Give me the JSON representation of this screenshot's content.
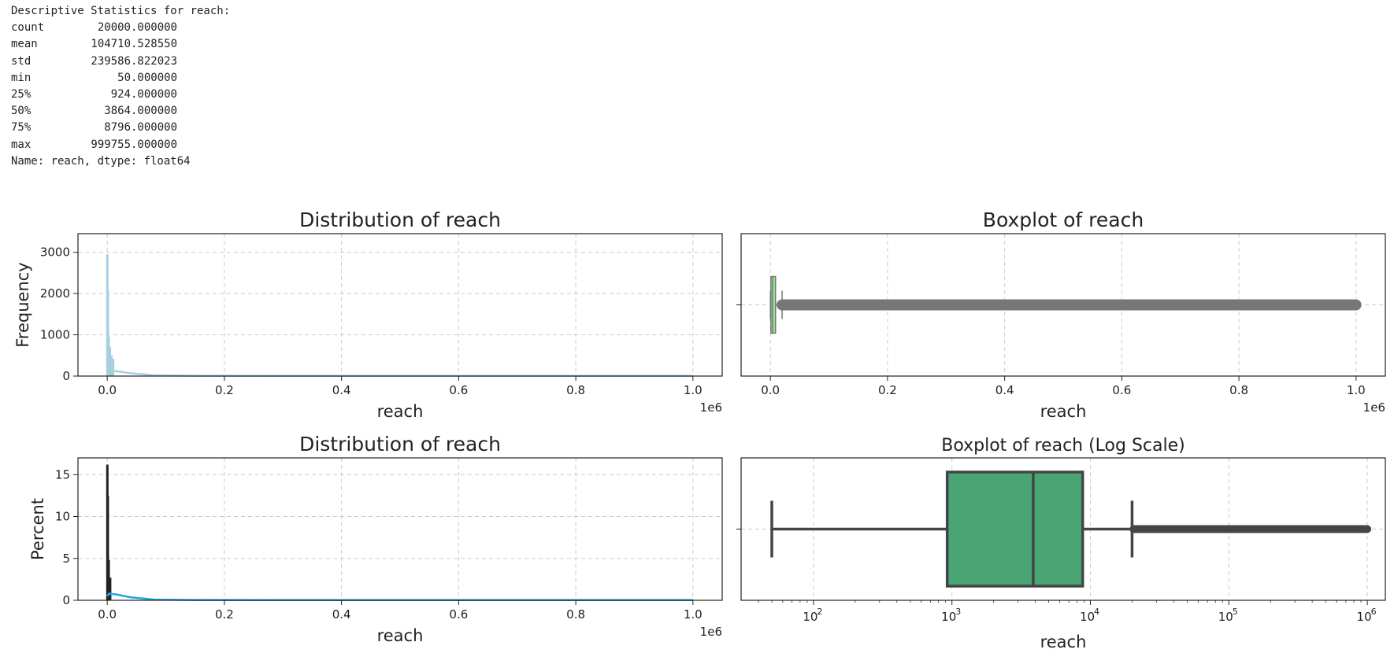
{
  "stats_panel": {
    "header": "Descriptive Statistics for reach:",
    "rows": [
      {
        "label": "count",
        "value": "20000.000000"
      },
      {
        "label": "mean",
        "value": "104710.528550"
      },
      {
        "label": "std",
        "value": "239586.822023"
      },
      {
        "label": "min",
        "value": "50.000000"
      },
      {
        "label": "25%",
        "value": "924.000000"
      },
      {
        "label": "50%",
        "value": "3864.000000"
      },
      {
        "label": "75%",
        "value": "8796.000000"
      },
      {
        "label": "max",
        "value": "999755.000000"
      }
    ],
    "footer": "Name: reach, dtype: float64"
  },
  "chart_data": [
    {
      "type": "histogram",
      "title": "Distribution of reach",
      "xlabel": "reach",
      "ylabel": "Frequency",
      "x_offset_text": "1e6",
      "xlim": [
        -50000,
        1050000
      ],
      "ylim": [
        0,
        3450
      ],
      "xticks": [
        0,
        200000,
        400000,
        600000,
        800000,
        1000000
      ],
      "xtick_labels": [
        "0.0",
        "0.2",
        "0.4",
        "0.6",
        "0.8",
        "1.0"
      ],
      "yticks": [
        0,
        1000,
        2000,
        3000
      ],
      "ytick_labels": [
        "0",
        "1000",
        "2000",
        "3000"
      ],
      "grid": true,
      "color": "#a8cfe0",
      "kde_color": "#a8cfe0",
      "bins": [
        {
          "x": 200,
          "value": 2950
        },
        {
          "x": 1000,
          "value": 2100
        },
        {
          "x": 2500,
          "value": 950
        },
        {
          "x": 4500,
          "value": 700
        },
        {
          "x": 7000,
          "value": 500
        },
        {
          "x": 10000,
          "value": 420
        }
      ],
      "kde": [
        [
          0,
          60
        ],
        [
          3000,
          140
        ],
        [
          15000,
          120
        ],
        [
          40000,
          70
        ],
        [
          80000,
          20
        ],
        [
          150000,
          8
        ],
        [
          300000,
          5
        ],
        [
          600000,
          5
        ],
        [
          1000000,
          5
        ]
      ]
    },
    {
      "type": "boxplot",
      "title": "Boxplot of reach",
      "xlabel": "reach",
      "x_offset_text": "1e6",
      "xlim": [
        -50000,
        1050000
      ],
      "xticks": [
        0,
        200000,
        400000,
        600000,
        800000,
        1000000
      ],
      "xtick_labels": [
        "0.0",
        "0.2",
        "0.4",
        "0.6",
        "0.8",
        "1.0"
      ],
      "grid": true,
      "box_color": "#90ee90",
      "line_color": "#777777",
      "min": 50,
      "q1": 924,
      "median": 3864,
      "q3": 8796,
      "whisker_high": 20000,
      "outliers_from": 20000,
      "outliers_to": 999755
    },
    {
      "type": "histogram",
      "title": "Distribution of reach",
      "xlabel": "reach",
      "ylabel": "Percent",
      "x_offset_text": "1e6",
      "xlim": [
        -50000,
        1050000
      ],
      "ylim": [
        0,
        17
      ],
      "xticks": [
        0,
        200000,
        400000,
        600000,
        800000,
        1000000
      ],
      "xtick_labels": [
        "0.0",
        "0.2",
        "0.4",
        "0.6",
        "0.8",
        "1.0"
      ],
      "yticks": [
        0,
        5,
        10,
        15
      ],
      "ytick_labels": [
        "0",
        "5",
        "10",
        "15"
      ],
      "grid": true,
      "color": "#222222",
      "kde_color": "#1ea7e1",
      "bins": [
        {
          "x": 200,
          "value": 16.2
        },
        {
          "x": 1000,
          "value": 12.5
        },
        {
          "x": 2500,
          "value": 4.8
        },
        {
          "x": 5000,
          "value": 2.7
        }
      ],
      "kde": [
        [
          0,
          0.5
        ],
        [
          3000,
          0.8
        ],
        [
          15000,
          0.7
        ],
        [
          40000,
          0.35
        ],
        [
          80000,
          0.08
        ],
        [
          150000,
          0.03
        ],
        [
          300000,
          0.02
        ],
        [
          600000,
          0.02
        ],
        [
          1000000,
          0.02
        ]
      ]
    },
    {
      "type": "boxplot",
      "title": "Boxplot of reach (Log Scale)",
      "xlabel": "reach",
      "xscale": "log",
      "xlim": [
        30,
        1350000
      ],
      "xticks": [
        100,
        1000,
        10000,
        100000,
        1000000
      ],
      "xtick_labels": [
        "10",
        "10",
        "10",
        "10",
        "10"
      ],
      "xtick_exponents": [
        "2",
        "3",
        "4",
        "5",
        "6"
      ],
      "grid": true,
      "box_color": "#4aa574",
      "line_color": "#444444",
      "min": 50,
      "q1": 924,
      "median": 3864,
      "q3": 8796,
      "whisker_high": 20000,
      "outliers_from": 20500,
      "outliers_to": 999755
    }
  ]
}
